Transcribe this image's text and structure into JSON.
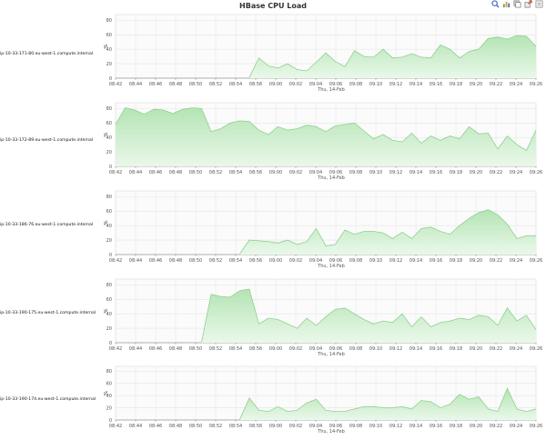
{
  "header": {
    "title": "HBase CPU Load",
    "icons": [
      "zoom-icon",
      "chart-icon",
      "copy-icon",
      "export-icon",
      "settings-icon"
    ]
  },
  "colors": {
    "area_fill": "#c9ecc9",
    "area_top": "#b4e4b4",
    "line": "#8fd08f",
    "grid": "#e4e4e4",
    "axis": "#999999"
  },
  "chart_data": [
    {
      "type": "area",
      "host": "ip-10-33-171-80.eu-west-1.compute.internal",
      "ylabel": "%",
      "xlabel": "Thu, 14-Feb",
      "yticks": [
        0,
        20,
        40,
        60,
        80
      ],
      "ylim": [
        0,
        88
      ],
      "xticks": [
        "08:42",
        "08:44",
        "08:46",
        "08:48",
        "08:50",
        "08:52",
        "08:54",
        "08:56",
        "09:00",
        "09:02",
        "09:04",
        "09:06",
        "09:08",
        "09:10",
        "09:12",
        "09:14",
        "09:16",
        "09:18",
        "09:20",
        "09:22",
        "09:24",
        "09:26"
      ],
      "x": [
        "08:56",
        "08:57",
        "08:58",
        "08:59",
        "09:00",
        "09:01",
        "09:02",
        "09:03",
        "09:04",
        "09:05",
        "09:06",
        "09:07",
        "09:08",
        "09:09",
        "09:10",
        "09:11",
        "09:12",
        "09:13",
        "09:14",
        "09:15",
        "09:16",
        "09:17",
        "09:18",
        "09:19",
        "09:20",
        "09:21",
        "09:22",
        "09:23",
        "09:24",
        "09:25",
        "09:26"
      ],
      "values": [
        1,
        28,
        17,
        14,
        20,
        12,
        10,
        22,
        35,
        23,
        16,
        38,
        30,
        29,
        40,
        28,
        29,
        34,
        29,
        28,
        46,
        40,
        28,
        37,
        40,
        55,
        57,
        54,
        59,
        58,
        44
      ]
    },
    {
      "type": "area",
      "host": "ip-10-33-172-89.eu-west-1.compute.internal",
      "ylabel": "%",
      "xlabel": "Thu, 14-Feb",
      "yticks": [
        0,
        20,
        40,
        60,
        80
      ],
      "ylim": [
        0,
        88
      ],
      "xticks": [
        "08:42",
        "08:44",
        "08:46",
        "08:48",
        "08:50",
        "08:52",
        "08:54",
        "08:56",
        "09:00",
        "09:02",
        "09:04",
        "09:06",
        "09:08",
        "09:10",
        "09:12",
        "09:14",
        "09:16",
        "09:18",
        "09:20",
        "09:22",
        "09:24",
        "09:26"
      ],
      "x": [
        "08:42",
        "08:43",
        "08:44",
        "08:45",
        "08:46",
        "08:47",
        "08:48",
        "08:49",
        "08:50",
        "08:51",
        "08:52",
        "08:53",
        "08:54",
        "08:55",
        "08:56",
        "08:57",
        "08:58",
        "08:59",
        "09:00",
        "09:01",
        "09:02",
        "09:03",
        "09:04",
        "09:05",
        "09:06",
        "09:07",
        "09:08",
        "09:09",
        "09:10",
        "09:11",
        "09:12",
        "09:13",
        "09:14",
        "09:15",
        "09:16",
        "09:17",
        "09:18",
        "09:19",
        "09:20",
        "09:21",
        "09:22",
        "09:23",
        "09:24",
        "09:25",
        "09:26"
      ],
      "values": [
        58,
        81,
        78,
        72,
        79,
        78,
        73,
        79,
        81,
        80,
        48,
        52,
        60,
        63,
        62,
        50,
        44,
        55,
        50,
        52,
        57,
        55,
        48,
        56,
        58,
        60,
        49,
        38,
        44,
        36,
        34,
        46,
        32,
        42,
        36,
        42,
        38,
        55,
        45,
        46,
        24,
        42,
        30,
        22,
        50
      ]
    },
    {
      "type": "area",
      "host": "ip-10-33-186-76.eu-west-1.compute.internal",
      "ylabel": "%",
      "xlabel": "Thu, 14-Feb",
      "yticks": [
        0,
        20,
        40,
        60,
        80
      ],
      "ylim": [
        0,
        88
      ],
      "xticks": [
        "08:42",
        "08:44",
        "08:46",
        "08:48",
        "08:50",
        "08:52",
        "08:54",
        "08:56",
        "09:00",
        "09:02",
        "09:04",
        "09:06",
        "09:08",
        "09:10",
        "09:12",
        "09:14",
        "09:16",
        "09:18",
        "09:20",
        "09:22",
        "09:24",
        "09:26"
      ],
      "x": [
        "08:55",
        "08:56",
        "08:57",
        "08:58",
        "08:59",
        "09:00",
        "09:01",
        "09:02",
        "09:03",
        "09:04",
        "09:05",
        "09:06",
        "09:07",
        "09:08",
        "09:09",
        "09:10",
        "09:11",
        "09:12",
        "09:13",
        "09:14",
        "09:15",
        "09:16",
        "09:17",
        "09:18",
        "09:19",
        "09:20",
        "09:21",
        "09:22",
        "09:23",
        "09:24",
        "09:25",
        "09:26"
      ],
      "values": [
        1,
        20,
        19,
        18,
        16,
        20,
        14,
        18,
        36,
        12,
        14,
        34,
        28,
        32,
        32,
        30,
        22,
        31,
        22,
        36,
        38,
        32,
        28,
        40,
        50,
        58,
        62,
        55,
        42,
        22,
        26,
        26
      ]
    },
    {
      "type": "area",
      "host": "ip-10-33-190-175.eu-west-1.compute.internal",
      "ylabel": "%",
      "xlabel": "Thu, 14-Feb",
      "yticks": [
        0,
        20,
        40,
        60,
        80
      ],
      "ylim": [
        0,
        88
      ],
      "xticks": [
        "08:42",
        "08:44",
        "08:46",
        "08:48",
        "08:50",
        "08:52",
        "08:54",
        "08:56",
        "09:00",
        "09:02",
        "09:04",
        "09:06",
        "09:08",
        "09:10",
        "09:12",
        "09:14",
        "09:16",
        "09:18",
        "09:20",
        "09:22",
        "09:24",
        "09:26"
      ],
      "x": [
        "08:51",
        "08:52",
        "08:53",
        "08:54",
        "08:55",
        "08:56",
        "08:57",
        "08:58",
        "08:59",
        "09:00",
        "09:01",
        "09:02",
        "09:03",
        "09:04",
        "09:05",
        "09:06",
        "09:07",
        "09:08",
        "09:09",
        "09:10",
        "09:11",
        "09:12",
        "09:13",
        "09:14",
        "09:15",
        "09:16",
        "09:17",
        "09:18",
        "09:19",
        "09:20",
        "09:21",
        "09:22",
        "09:23",
        "09:24",
        "09:25",
        "09:26"
      ],
      "values": [
        1,
        67,
        64,
        63,
        72,
        74,
        26,
        34,
        32,
        26,
        20,
        34,
        24,
        36,
        46,
        48,
        40,
        32,
        26,
        30,
        28,
        40,
        22,
        36,
        22,
        28,
        30,
        34,
        32,
        38,
        36,
        24,
        48,
        30,
        38,
        18
      ]
    },
    {
      "type": "area",
      "host": "ip-10-33-190-174.eu-west-1.compute.internal",
      "ylabel": "%",
      "xlabel": "Thu, 14-Feb",
      "yticks": [
        0,
        20,
        40,
        60,
        80
      ],
      "ylim": [
        0,
        88
      ],
      "xticks": [
        "08:42",
        "08:44",
        "08:46",
        "08:48",
        "08:50",
        "08:52",
        "08:54",
        "08:56",
        "09:00",
        "09:02",
        "09:04",
        "09:06",
        "09:08",
        "09:10",
        "09:12",
        "09:14",
        "09:16",
        "09:18",
        "09:20",
        "09:22",
        "09:24",
        "09:26"
      ],
      "x": [
        "08:55",
        "08:56",
        "08:57",
        "08:58",
        "08:59",
        "09:00",
        "09:01",
        "09:02",
        "09:03",
        "09:04",
        "09:05",
        "09:06",
        "09:07",
        "09:08",
        "09:09",
        "09:10",
        "09:11",
        "09:12",
        "09:13",
        "09:14",
        "09:15",
        "09:16",
        "09:17",
        "09:18",
        "09:19",
        "09:20",
        "09:21",
        "09:22",
        "09:23",
        "09:24",
        "09:25",
        "09:26"
      ],
      "values": [
        1,
        36,
        16,
        14,
        22,
        14,
        16,
        28,
        34,
        16,
        14,
        14,
        18,
        22,
        22,
        20,
        20,
        22,
        18,
        32,
        30,
        20,
        26,
        42,
        34,
        38,
        18,
        14,
        52,
        18,
        14,
        18
      ]
    }
  ]
}
